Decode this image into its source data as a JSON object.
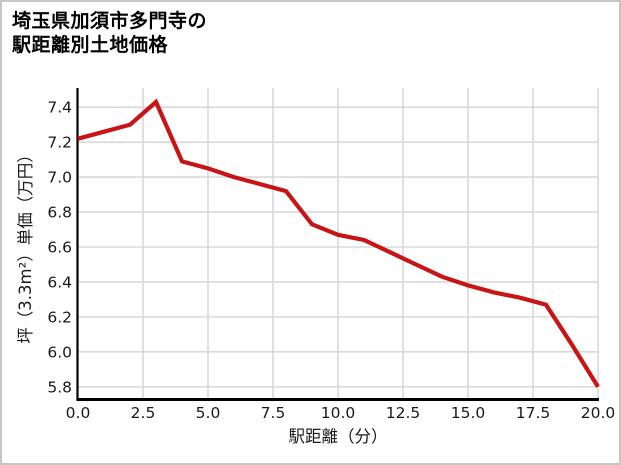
{
  "chart_data": {
    "type": "line",
    "title": "埼玉県加須市多門寺の駅距離別土地価格",
    "title_lines": [
      "埼玉県加須市多門寺の",
      "駅距離別土地価格"
    ],
    "xlabel": "駅距離（分）",
    "ylabel": "坪（3.3m²）単価（万円）",
    "series": [
      {
        "name": "坪単価（万円）",
        "x": [
          0,
          1,
          2,
          3,
          4,
          5,
          6,
          7,
          8,
          9,
          10,
          11,
          12,
          13,
          14,
          15,
          16,
          17,
          18,
          19,
          20
        ],
        "values": [
          7.22,
          7.26,
          7.3,
          7.43,
          7.09,
          7.05,
          7.0,
          6.96,
          6.92,
          6.73,
          6.67,
          6.64,
          6.57,
          6.5,
          6.43,
          6.38,
          6.34,
          6.31,
          6.27,
          6.04,
          5.8
        ]
      }
    ],
    "xticks": [
      0.0,
      2.5,
      5.0,
      7.5,
      10.0,
      12.5,
      15.0,
      17.5,
      20.0
    ],
    "xtick_labels": [
      "0.0",
      "2.5",
      "5.0",
      "7.5",
      "10.0",
      "12.5",
      "15.0",
      "17.5",
      "20.0"
    ],
    "yticks": [
      5.8,
      6.0,
      6.2,
      6.4,
      6.6,
      6.8,
      7.0,
      7.2,
      7.4
    ],
    "ytick_labels": [
      "5.8",
      "6.0",
      "6.2",
      "6.4",
      "6.6",
      "6.8",
      "7.0",
      "7.2",
      "7.4"
    ],
    "xlim": [
      0,
      20
    ],
    "ylim": [
      5.73,
      7.51
    ],
    "grid": true,
    "legend_position": "none",
    "line_color": "#c81414",
    "grid_color": "#d9d9d9",
    "axis_color": "#000000",
    "background_color": "#ffffff"
  }
}
